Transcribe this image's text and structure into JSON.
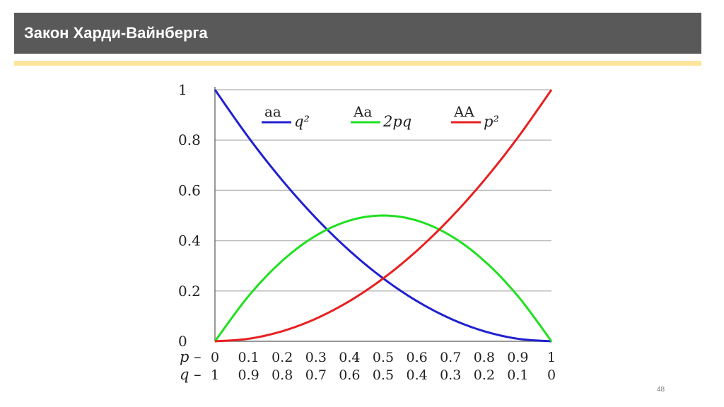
{
  "slide": {
    "title": "Закон Харди-Вайнберга",
    "page_number": "48",
    "colors": {
      "title_bar": "#595959",
      "accent": "#fde59c"
    }
  },
  "chart_data": {
    "type": "line",
    "title": "",
    "xlabel": "",
    "ylabel": "",
    "xlim": [
      0,
      1
    ],
    "ylim": [
      0,
      1
    ],
    "grid": "horizontal",
    "y_ticks": [
      "0",
      "0.2",
      "0.4",
      "0.6",
      "0.8",
      "1"
    ],
    "p_ticks": [
      "0",
      "0.1",
      "0.2",
      "0.3",
      "0.4",
      "0.5",
      "0.6",
      "0.7",
      "0.8",
      "0.9",
      "1"
    ],
    "q_ticks": [
      "1",
      "0.9",
      "0.8",
      "0.7",
      "0.6",
      "0.5",
      "0.4",
      "0.3",
      "0.2",
      "0.1",
      "0"
    ],
    "p_axis_label": "p",
    "q_axis_label": "q",
    "x": [
      0,
      0.1,
      0.2,
      0.3,
      0.4,
      0.5,
      0.6,
      0.7,
      0.8,
      0.9,
      1
    ],
    "series": [
      {
        "name": "aa",
        "formula": "q²",
        "color": "#2020d0",
        "values": [
          1,
          0.81,
          0.64,
          0.49,
          0.36,
          0.25,
          0.16,
          0.09,
          0.04,
          0.01,
          0
        ]
      },
      {
        "name": "Aa",
        "formula": "2pq",
        "color": "#20e020",
        "values": [
          0,
          0.18,
          0.32,
          0.42,
          0.48,
          0.5,
          0.48,
          0.42,
          0.32,
          0.18,
          0
        ]
      },
      {
        "name": "AA",
        "formula": "p²",
        "color": "#e82020",
        "values": [
          0,
          0.01,
          0.04,
          0.09,
          0.16,
          0.25,
          0.36,
          0.49,
          0.64,
          0.81,
          1
        ]
      }
    ],
    "legend_position": "top"
  }
}
